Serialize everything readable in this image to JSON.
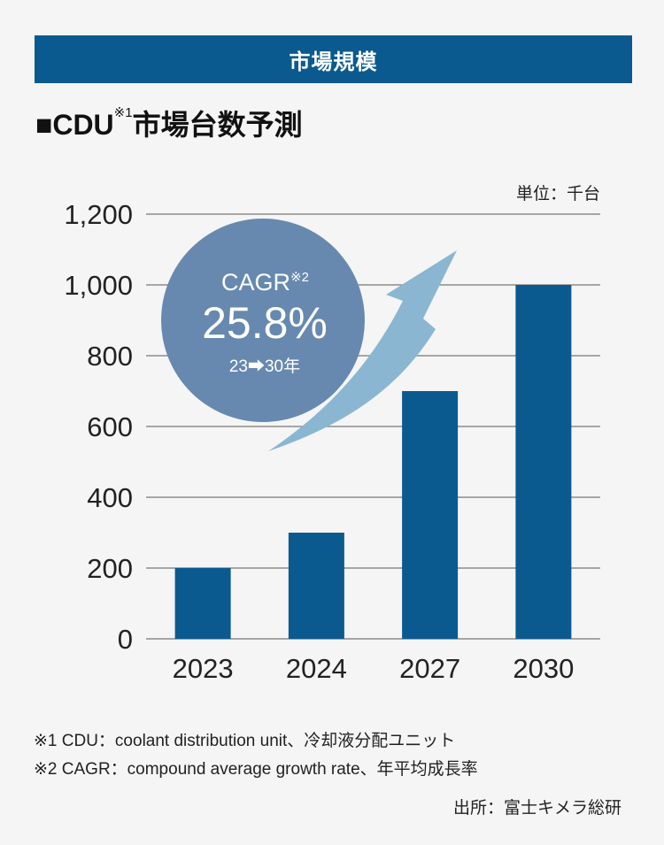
{
  "banner": "市場規模",
  "title": {
    "prefix": "■CDU",
    "sup": "※1",
    "suffix": "市場台数予測"
  },
  "unit": "単位：千台",
  "cagr": {
    "label": "CAGR",
    "sup": "※2",
    "value": "25.8%",
    "period": "23➡30年"
  },
  "chart_data": {
    "type": "bar",
    "categories": [
      "2023",
      "2024",
      "2027",
      "2030"
    ],
    "values": [
      200,
      300,
      700,
      1000
    ],
    "ylim": [
      0,
      1200
    ],
    "yticks": [
      0,
      200,
      400,
      600,
      800,
      1000,
      1200
    ],
    "ytick_labels": [
      "0",
      "200",
      "400",
      "600",
      "800",
      "1,000",
      "1,200"
    ],
    "grid": true,
    "ylabel": "",
    "xlabel": ""
  },
  "colors": {
    "bar": "#0a5a8f",
    "circle": "#6789b0",
    "arrow": "#8ab6d2"
  },
  "notes": [
    "※1 CDU：coolant distribution unit、冷却液分配ユニット",
    "※2 CAGR：compound average growth rate、年平均成長率"
  ],
  "source": "出所：富士キメラ総研"
}
